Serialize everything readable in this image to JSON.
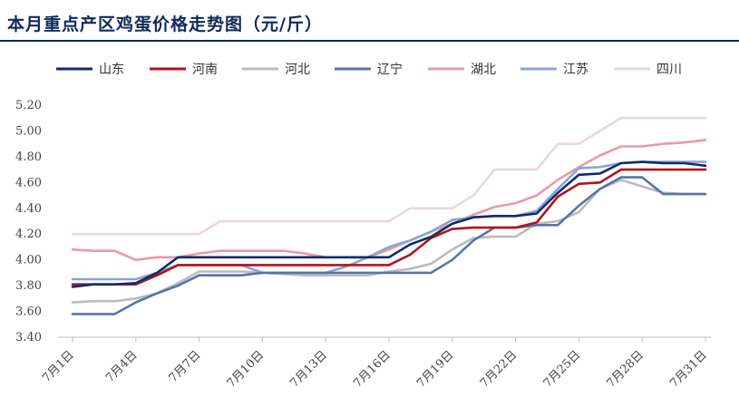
{
  "title": "本月重点产区鸡蛋价格走势图（元/斤）",
  "chart_data": {
    "type": "line",
    "title": "本月重点产区鸡蛋价格走势图（元/斤）",
    "xlabel": "",
    "ylabel": "",
    "ylim": [
      3.4,
      5.2
    ],
    "yticks": [
      "3.40",
      "3.60",
      "3.80",
      "4.00",
      "4.20",
      "4.40",
      "4.60",
      "4.80",
      "5.00",
      "5.20"
    ],
    "x": [
      1,
      2,
      3,
      4,
      5,
      6,
      7,
      8,
      9,
      10,
      11,
      12,
      13,
      14,
      15,
      16,
      17,
      18,
      19,
      20,
      21,
      22,
      23,
      24,
      25,
      26,
      27,
      28,
      29,
      30,
      31
    ],
    "x_tick_labels": [
      {
        "day": 1,
        "label": "7月1日"
      },
      {
        "day": 4,
        "label": "7月4日"
      },
      {
        "day": 7,
        "label": "7月7日"
      },
      {
        "day": 10,
        "label": "7月10日"
      },
      {
        "day": 13,
        "label": "7月13日"
      },
      {
        "day": 16,
        "label": "7月16日"
      },
      {
        "day": 19,
        "label": "7月19日"
      },
      {
        "day": 22,
        "label": "7月22日"
      },
      {
        "day": 25,
        "label": "7月25日"
      },
      {
        "day": 28,
        "label": "7月28日"
      },
      {
        "day": 31,
        "label": "7月31日"
      }
    ],
    "grid": false,
    "legend_position": "top",
    "series": [
      {
        "name": "山东",
        "color": "#0d2d6b",
        "values": [
          3.79,
          3.81,
          3.81,
          3.82,
          3.9,
          4.02,
          4.02,
          4.02,
          4.02,
          4.02,
          4.02,
          4.02,
          4.02,
          4.02,
          4.02,
          4.02,
          4.12,
          4.18,
          4.28,
          4.33,
          4.34,
          4.34,
          4.36,
          4.52,
          4.66,
          4.67,
          4.75,
          4.76,
          4.75,
          4.75,
          4.73
        ]
      },
      {
        "name": "河南",
        "color": "#b3131b",
        "values": [
          3.81,
          3.81,
          3.81,
          3.81,
          3.88,
          3.96,
          3.96,
          3.96,
          3.96,
          3.96,
          3.96,
          3.96,
          3.96,
          3.96,
          3.96,
          3.96,
          4.04,
          4.17,
          4.24,
          4.25,
          4.25,
          4.25,
          4.29,
          4.49,
          4.59,
          4.6,
          4.7,
          4.7,
          4.7,
          4.7,
          4.7
        ]
      },
      {
        "name": "河北",
        "color": "#bcbcbc",
        "values": [
          3.67,
          3.68,
          3.68,
          3.7,
          3.74,
          3.82,
          3.91,
          3.91,
          3.91,
          3.9,
          3.89,
          3.88,
          3.88,
          3.88,
          3.88,
          3.91,
          3.93,
          3.97,
          4.08,
          4.17,
          4.18,
          4.18,
          4.28,
          4.3,
          4.37,
          4.55,
          4.62,
          4.57,
          4.52,
          4.51,
          4.51
        ]
      },
      {
        "name": "辽宁",
        "color": "#5576a9",
        "values": [
          3.58,
          3.58,
          3.58,
          3.67,
          3.74,
          3.8,
          3.88,
          3.88,
          3.88,
          3.9,
          3.9,
          3.9,
          3.9,
          3.9,
          3.9,
          3.9,
          3.9,
          3.9,
          4.0,
          4.15,
          4.25,
          4.25,
          4.27,
          4.27,
          4.42,
          4.55,
          4.64,
          4.64,
          4.51,
          4.51,
          4.51
        ]
      },
      {
        "name": "湖北",
        "color": "#ea9aa6",
        "values": [
          4.08,
          4.07,
          4.07,
          4.0,
          4.02,
          4.02,
          4.05,
          4.07,
          4.07,
          4.07,
          4.07,
          4.05,
          4.02,
          4.02,
          4.02,
          4.08,
          4.15,
          4.22,
          4.28,
          4.35,
          4.41,
          4.44,
          4.5,
          4.62,
          4.72,
          4.81,
          4.88,
          4.88,
          4.9,
          4.91,
          4.93
        ]
      },
      {
        "name": "江苏",
        "color": "#8ca5d0",
        "values": [
          3.85,
          3.85,
          3.85,
          3.85,
          3.9,
          3.96,
          3.96,
          3.96,
          3.96,
          3.9,
          3.9,
          3.9,
          3.9,
          3.95,
          4.02,
          4.1,
          4.15,
          4.22,
          4.31,
          4.33,
          4.34,
          4.34,
          4.38,
          4.55,
          4.71,
          4.72,
          4.75,
          4.76,
          4.76,
          4.76,
          4.76
        ]
      },
      {
        "name": "四川",
        "color": "#eed6d6",
        "values": [
          4.2,
          4.2,
          4.2,
          4.2,
          4.2,
          4.2,
          4.2,
          4.3,
          4.3,
          4.3,
          4.3,
          4.3,
          4.3,
          4.3,
          4.3,
          4.3,
          4.4,
          4.4,
          4.4,
          4.5,
          4.7,
          4.7,
          4.7,
          4.9,
          4.9,
          5.0,
          5.1,
          5.1,
          5.1,
          5.1,
          5.1
        ]
      }
    ]
  }
}
